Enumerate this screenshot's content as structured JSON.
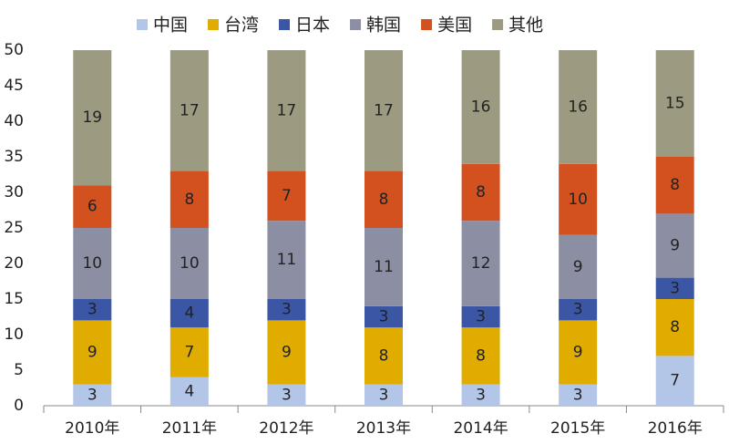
{
  "chart_data": {
    "type": "stacked-bar",
    "categories": [
      "2010年",
      "2011年",
      "2012年",
      "2013年",
      "2014年",
      "2015年",
      "2016年"
    ],
    "series": [
      {
        "name": "中国",
        "color": "#b4c6e7",
        "values": [
          3,
          4,
          3,
          3,
          3,
          3,
          7
        ]
      },
      {
        "name": "台湾",
        "color": "#e0ac00",
        "values": [
          9,
          7,
          9,
          8,
          8,
          9,
          8
        ]
      },
      {
        "name": "日本",
        "color": "#3a56a5",
        "values": [
          3,
          4,
          3,
          3,
          3,
          3,
          3
        ]
      },
      {
        "name": "韩国",
        "color": "#8c8fa3",
        "values": [
          10,
          10,
          11,
          11,
          12,
          9,
          9
        ]
      },
      {
        "name": "美国",
        "color": "#d2511f",
        "values": [
          6,
          8,
          7,
          8,
          8,
          10,
          8
        ]
      },
      {
        "name": "其他",
        "color": "#9c9a80",
        "values": [
          19,
          17,
          17,
          17,
          16,
          16,
          15
        ]
      }
    ],
    "ylim": [
      0,
      50
    ],
    "yticks": [
      0,
      5,
      10,
      15,
      20,
      25,
      30,
      35,
      40,
      45,
      50
    ],
    "legend": "top",
    "grid": false
  }
}
